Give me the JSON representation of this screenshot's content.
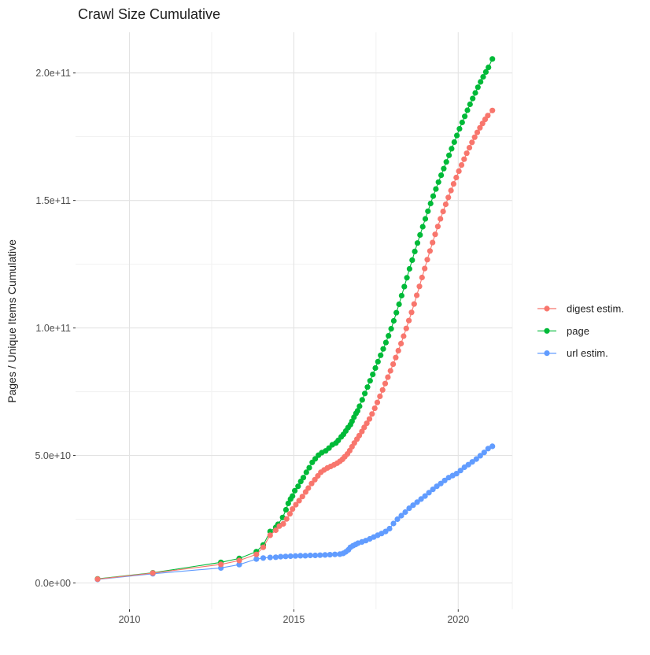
{
  "title": "Crawl Size Cumulative",
  "colors": {
    "digest": "#F8766D",
    "page": "#00BA38",
    "url": "#619CFF",
    "grid_major": "#E3E3E3",
    "grid_minor": "#F1F1F1",
    "tick_mark": "#333333",
    "tick_text": "#4D4D4D",
    "title_text": "#1F1F1F"
  },
  "chart_data": {
    "type": "line",
    "title": "Crawl Size Cumulative",
    "xlabel": "",
    "ylabel": "Pages / Unique Items Cumulative",
    "grid": true,
    "legend_position": "right",
    "values_unit": "items (point values stored in billions, 1e9)",
    "xlim": [
      2008.36,
      2021.645
    ],
    "ylim": [
      -10340000000,
      215960000000
    ],
    "x_major_ticks": [
      {
        "value": 2010,
        "label": "2010"
      },
      {
        "value": 2015,
        "label": "2015"
      },
      {
        "value": 2020,
        "label": "2020"
      }
    ],
    "x_minor_ticks": [
      2012.5,
      2017.5
    ],
    "y_major_ticks": [
      {
        "value": 0,
        "label": "0.0e+00"
      },
      {
        "value": 50000000000,
        "label": "5.0e+10"
      },
      {
        "value": 100000000000,
        "label": "1.0e+11"
      },
      {
        "value": 150000000000,
        "label": "1.5e+11"
      },
      {
        "value": 200000000000,
        "label": "2.0e+11"
      }
    ],
    "y_minor_ticks": [
      25000000000,
      75000000000,
      125000000000,
      175000000000
    ],
    "series": [
      {
        "name": "digest estim.",
        "color": "#F8766D",
        "points_year_billions": [
          [
            2009.03,
            1.5
          ],
          [
            2010.71,
            3.9
          ],
          [
            2012.78,
            7.3
          ],
          [
            2013.34,
            8.8
          ],
          [
            2013.86,
            11.2
          ],
          [
            2014.07,
            14.0
          ],
          [
            2014.28,
            18.7
          ],
          [
            2014.45,
            20.7
          ],
          [
            2014.56,
            22.3
          ],
          [
            2014.68,
            23.2
          ],
          [
            2014.78,
            25.1
          ],
          [
            2014.88,
            27.1
          ],
          [
            2014.96,
            29.0
          ],
          [
            2015.06,
            30.7
          ],
          [
            2015.16,
            32.3
          ],
          [
            2015.26,
            33.9
          ],
          [
            2015.36,
            35.7
          ],
          [
            2015.44,
            37.2
          ],
          [
            2015.54,
            39.0
          ],
          [
            2015.64,
            40.5
          ],
          [
            2015.73,
            42.0
          ],
          [
            2015.82,
            43.4
          ],
          [
            2015.92,
            44.3
          ],
          [
            2016.02,
            45.1
          ],
          [
            2016.12,
            45.7
          ],
          [
            2016.22,
            46.3
          ],
          [
            2016.32,
            47.0
          ],
          [
            2016.4,
            47.7
          ],
          [
            2016.48,
            48.5
          ],
          [
            2016.55,
            49.5
          ],
          [
            2016.63,
            50.6
          ],
          [
            2016.7,
            51.9
          ],
          [
            2016.77,
            53.4
          ],
          [
            2016.84,
            54.9
          ],
          [
            2016.92,
            56.4
          ],
          [
            2016.99,
            57.8
          ],
          [
            2017.07,
            59.4
          ],
          [
            2017.14,
            61.0
          ],
          [
            2017.22,
            62.6
          ],
          [
            2017.3,
            64.3
          ],
          [
            2017.38,
            66.3
          ],
          [
            2017.46,
            68.5
          ],
          [
            2017.54,
            70.8
          ],
          [
            2017.62,
            73.2
          ],
          [
            2017.7,
            75.7
          ],
          [
            2017.78,
            78.2
          ],
          [
            2017.86,
            80.7
          ],
          [
            2017.94,
            83.2
          ],
          [
            2018.02,
            85.8
          ],
          [
            2018.1,
            88.4
          ],
          [
            2018.18,
            91.1
          ],
          [
            2018.26,
            93.9
          ],
          [
            2018.34,
            96.8
          ],
          [
            2018.42,
            99.8
          ],
          [
            2018.5,
            102.9
          ],
          [
            2018.58,
            106.1
          ],
          [
            2018.66,
            109.4
          ],
          [
            2018.74,
            112.8
          ],
          [
            2018.82,
            116.3
          ],
          [
            2018.9,
            119.8
          ],
          [
            2018.98,
            123.3
          ],
          [
            2019.06,
            126.8
          ],
          [
            2019.14,
            130.2
          ],
          [
            2019.22,
            133.5
          ],
          [
            2019.3,
            136.7
          ],
          [
            2019.38,
            139.8
          ],
          [
            2019.46,
            142.8
          ],
          [
            2019.54,
            145.7
          ],
          [
            2019.62,
            148.5
          ],
          [
            2019.7,
            151.2
          ],
          [
            2019.78,
            153.9
          ],
          [
            2019.86,
            156.5
          ],
          [
            2019.94,
            159.0
          ],
          [
            2020.02,
            161.5
          ],
          [
            2020.1,
            163.9
          ],
          [
            2020.18,
            166.2
          ],
          [
            2020.26,
            168.5
          ],
          [
            2020.34,
            170.7
          ],
          [
            2020.42,
            172.8
          ],
          [
            2020.5,
            174.8
          ],
          [
            2020.58,
            176.7
          ],
          [
            2020.66,
            178.5
          ],
          [
            2020.74,
            180.2
          ],
          [
            2020.82,
            181.8
          ],
          [
            2020.9,
            183.3
          ],
          [
            2021.04,
            185.3
          ]
        ]
      },
      {
        "name": "page",
        "color": "#00BA38",
        "points_year_billions": [
          [
            2009.03,
            1.6
          ],
          [
            2010.71,
            4.0
          ],
          [
            2012.78,
            8.1
          ],
          [
            2013.34,
            9.6
          ],
          [
            2013.86,
            12.3
          ],
          [
            2014.07,
            14.9
          ],
          [
            2014.28,
            20.2
          ],
          [
            2014.45,
            21.8
          ],
          [
            2014.52,
            23.0
          ],
          [
            2014.66,
            25.7
          ],
          [
            2014.76,
            28.7
          ],
          [
            2014.83,
            31.2
          ],
          [
            2014.9,
            32.9
          ],
          [
            2014.96,
            34.1
          ],
          [
            2015.03,
            36.2
          ],
          [
            2015.13,
            37.9
          ],
          [
            2015.21,
            39.8
          ],
          [
            2015.29,
            41.3
          ],
          [
            2015.38,
            43.4
          ],
          [
            2015.47,
            45.2
          ],
          [
            2015.56,
            47.3
          ],
          [
            2015.65,
            48.7
          ],
          [
            2015.75,
            50.1
          ],
          [
            2015.85,
            51.1
          ],
          [
            2015.97,
            51.8
          ],
          [
            2016.07,
            52.9
          ],
          [
            2016.17,
            54.2
          ],
          [
            2016.28,
            54.9
          ],
          [
            2016.35,
            55.9
          ],
          [
            2016.44,
            57.3
          ],
          [
            2016.51,
            58.3
          ],
          [
            2016.58,
            59.6
          ],
          [
            2016.65,
            60.9
          ],
          [
            2016.72,
            62.1
          ],
          [
            2016.77,
            63.4
          ],
          [
            2016.83,
            65.0
          ],
          [
            2016.89,
            66.5
          ],
          [
            2016.94,
            67.5
          ],
          [
            2017.0,
            69.3
          ],
          [
            2017.08,
            71.8
          ],
          [
            2017.16,
            74.3
          ],
          [
            2017.24,
            76.8
          ],
          [
            2017.32,
            79.3
          ],
          [
            2017.4,
            81.8
          ],
          [
            2017.48,
            84.3
          ],
          [
            2017.56,
            86.8
          ],
          [
            2017.64,
            89.3
          ],
          [
            2017.72,
            91.8
          ],
          [
            2017.8,
            94.3
          ],
          [
            2017.88,
            96.9
          ],
          [
            2017.96,
            99.7
          ],
          [
            2018.04,
            102.8
          ],
          [
            2018.12,
            106.0
          ],
          [
            2018.2,
            109.3
          ],
          [
            2018.28,
            112.7
          ],
          [
            2018.36,
            116.2
          ],
          [
            2018.44,
            119.7
          ],
          [
            2018.52,
            123.2
          ],
          [
            2018.6,
            126.6
          ],
          [
            2018.68,
            130.0
          ],
          [
            2018.76,
            133.3
          ],
          [
            2018.84,
            136.5
          ],
          [
            2018.92,
            139.7
          ],
          [
            2019.0,
            142.8
          ],
          [
            2019.08,
            145.8
          ],
          [
            2019.16,
            148.8
          ],
          [
            2019.24,
            151.7
          ],
          [
            2019.32,
            154.5
          ],
          [
            2019.4,
            157.2
          ],
          [
            2019.48,
            159.9
          ],
          [
            2019.56,
            162.5
          ],
          [
            2019.64,
            165.1
          ],
          [
            2019.72,
            167.7
          ],
          [
            2019.8,
            170.3
          ],
          [
            2019.88,
            172.9
          ],
          [
            2019.96,
            175.5
          ],
          [
            2020.04,
            178.1
          ],
          [
            2020.12,
            180.6
          ],
          [
            2020.2,
            183.0
          ],
          [
            2020.28,
            185.4
          ],
          [
            2020.36,
            187.7
          ],
          [
            2020.44,
            190.0
          ],
          [
            2020.52,
            192.2
          ],
          [
            2020.6,
            194.4
          ],
          [
            2020.68,
            196.5
          ],
          [
            2020.76,
            198.5
          ],
          [
            2020.84,
            200.4
          ],
          [
            2020.92,
            202.2
          ],
          [
            2021.04,
            205.5
          ]
        ]
      },
      {
        "name": "url estim.",
        "color": "#619CFF",
        "points_year_billions": [
          [
            2009.03,
            1.4
          ],
          [
            2010.71,
            3.6
          ],
          [
            2012.78,
            5.9
          ],
          [
            2013.34,
            7.2
          ],
          [
            2013.86,
            9.4
          ],
          [
            2014.07,
            9.8
          ],
          [
            2014.28,
            10.0
          ],
          [
            2014.45,
            10.1
          ],
          [
            2014.6,
            10.3
          ],
          [
            2014.75,
            10.4
          ],
          [
            2014.9,
            10.5
          ],
          [
            2015.05,
            10.6
          ],
          [
            2015.2,
            10.7
          ],
          [
            2015.35,
            10.7
          ],
          [
            2015.5,
            10.8
          ],
          [
            2015.65,
            10.8
          ],
          [
            2015.8,
            10.9
          ],
          [
            2015.95,
            11.0
          ],
          [
            2016.1,
            11.1
          ],
          [
            2016.25,
            11.2
          ],
          [
            2016.4,
            11.3
          ],
          [
            2016.5,
            11.6
          ],
          [
            2016.58,
            12.2
          ],
          [
            2016.66,
            13.0
          ],
          [
            2016.72,
            14.0
          ],
          [
            2016.8,
            14.6
          ],
          [
            2016.88,
            15.1
          ],
          [
            2016.95,
            15.6
          ],
          [
            2017.07,
            16.1
          ],
          [
            2017.19,
            16.6
          ],
          [
            2017.31,
            17.3
          ],
          [
            2017.43,
            18.0
          ],
          [
            2017.55,
            18.7
          ],
          [
            2017.67,
            19.4
          ],
          [
            2017.79,
            20.2
          ],
          [
            2017.91,
            21.3
          ],
          [
            2018.03,
            23.3
          ],
          [
            2018.15,
            25.0
          ],
          [
            2018.27,
            26.4
          ],
          [
            2018.39,
            27.8
          ],
          [
            2018.51,
            29.3
          ],
          [
            2018.63,
            30.5
          ],
          [
            2018.75,
            31.7
          ],
          [
            2018.87,
            32.9
          ],
          [
            2018.99,
            34.1
          ],
          [
            2019.11,
            35.4
          ],
          [
            2019.23,
            36.7
          ],
          [
            2019.35,
            37.9
          ],
          [
            2019.47,
            39.0
          ],
          [
            2019.59,
            40.2
          ],
          [
            2019.71,
            41.3
          ],
          [
            2019.83,
            42.1
          ],
          [
            2019.95,
            42.9
          ],
          [
            2020.07,
            44.1
          ],
          [
            2020.19,
            45.4
          ],
          [
            2020.31,
            46.4
          ],
          [
            2020.43,
            47.5
          ],
          [
            2020.55,
            48.6
          ],
          [
            2020.67,
            49.9
          ],
          [
            2020.79,
            51.2
          ],
          [
            2020.91,
            52.7
          ],
          [
            2021.04,
            53.6
          ]
        ]
      }
    ]
  },
  "legend": {
    "items": [
      {
        "label": "digest estim.",
        "color": "#F8766D"
      },
      {
        "label": "page",
        "color": "#00BA38"
      },
      {
        "label": "url estim.",
        "color": "#619CFF"
      }
    ]
  }
}
